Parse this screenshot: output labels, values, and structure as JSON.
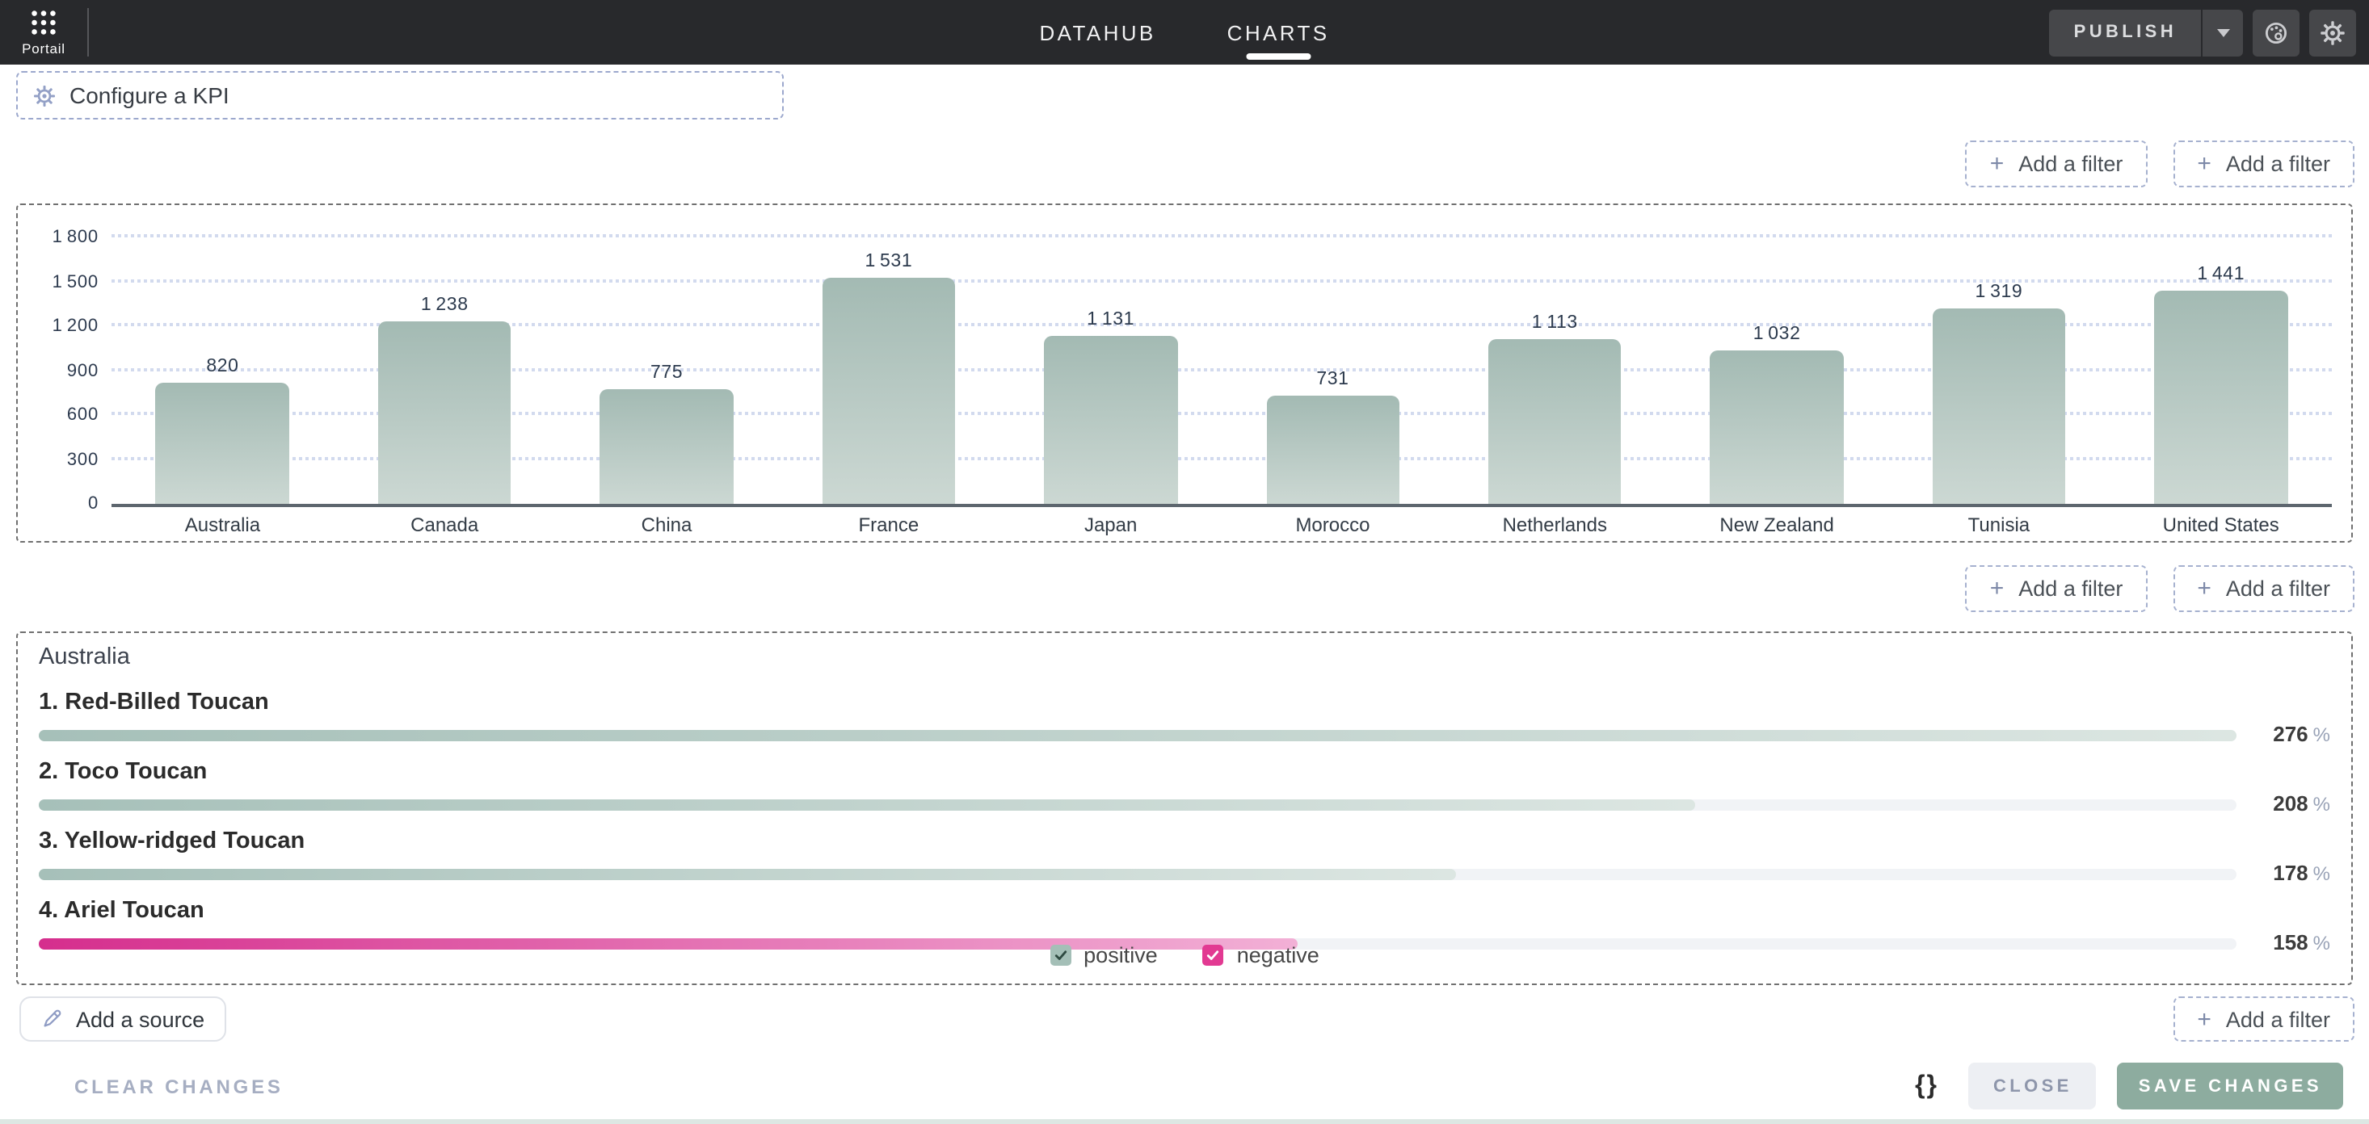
{
  "topbar": {
    "app_name": "Portail",
    "tabs": [
      {
        "label": "DATAHUB",
        "active": false
      },
      {
        "label": "CHARTS",
        "active": true
      }
    ],
    "publish_label": "PUBLISH",
    "colors": {
      "bar_bg": "#28292c",
      "button_bg": "#46474a"
    }
  },
  "kpi_bar": {
    "label": "Configure a KPI"
  },
  "filter_buttons": {
    "plus": "+",
    "label": "Add a filter"
  },
  "chart_data": {
    "type": "bar",
    "title": "",
    "categories": [
      "Australia",
      "Canada",
      "China",
      "France",
      "Japan",
      "Morocco",
      "Netherlands",
      "New Zealand",
      "Tunisia",
      "United States"
    ],
    "values": [
      820,
      1238,
      775,
      1531,
      1131,
      731,
      1113,
      1032,
      1319,
      1441
    ],
    "xlabel": "",
    "ylabel": "",
    "ylim": [
      0,
      1800
    ],
    "yticks": [
      0,
      300,
      600,
      900,
      1200,
      1500,
      1800
    ],
    "grid": "horizontal-dotted",
    "legend_position": "none",
    "number_format": "thousands separated by thin space",
    "bar_gradient": [
      "#a3bab3",
      "#ccd8d3"
    ]
  },
  "ranking": {
    "title": "Australia",
    "unit": "%",
    "max_value": 276,
    "items": [
      {
        "label": "1. Red-Billed Toucan",
        "value": 276,
        "kind": "positive"
      },
      {
        "label": "2. Toco Toucan",
        "value": 208,
        "kind": "positive"
      },
      {
        "label": "3. Yellow-ridged Toucan",
        "value": 178,
        "kind": "positive"
      },
      {
        "label": "4. Ariel Toucan",
        "value": 158,
        "kind": "negative"
      }
    ],
    "legend": [
      {
        "label": "positive",
        "color": "#a4bfb7",
        "check_color": "#2e4a41",
        "checked": true
      },
      {
        "label": "negative",
        "color": "#e23a92",
        "check_color": "#ffffff",
        "checked": true
      }
    ],
    "colors": {
      "positive_from": "#a6c0b9",
      "positive_to": "#dce6e2",
      "negative_from": "#d52e8d",
      "negative_to": "#f2b0d6",
      "track": "#f1f3f6"
    }
  },
  "source_bar": {
    "add_source_label": "Add a source"
  },
  "footer": {
    "clear_label": "CLEAR CHANGES",
    "braces": "{}",
    "close_label": "CLOSE",
    "save_label": "SAVE CHANGES"
  }
}
